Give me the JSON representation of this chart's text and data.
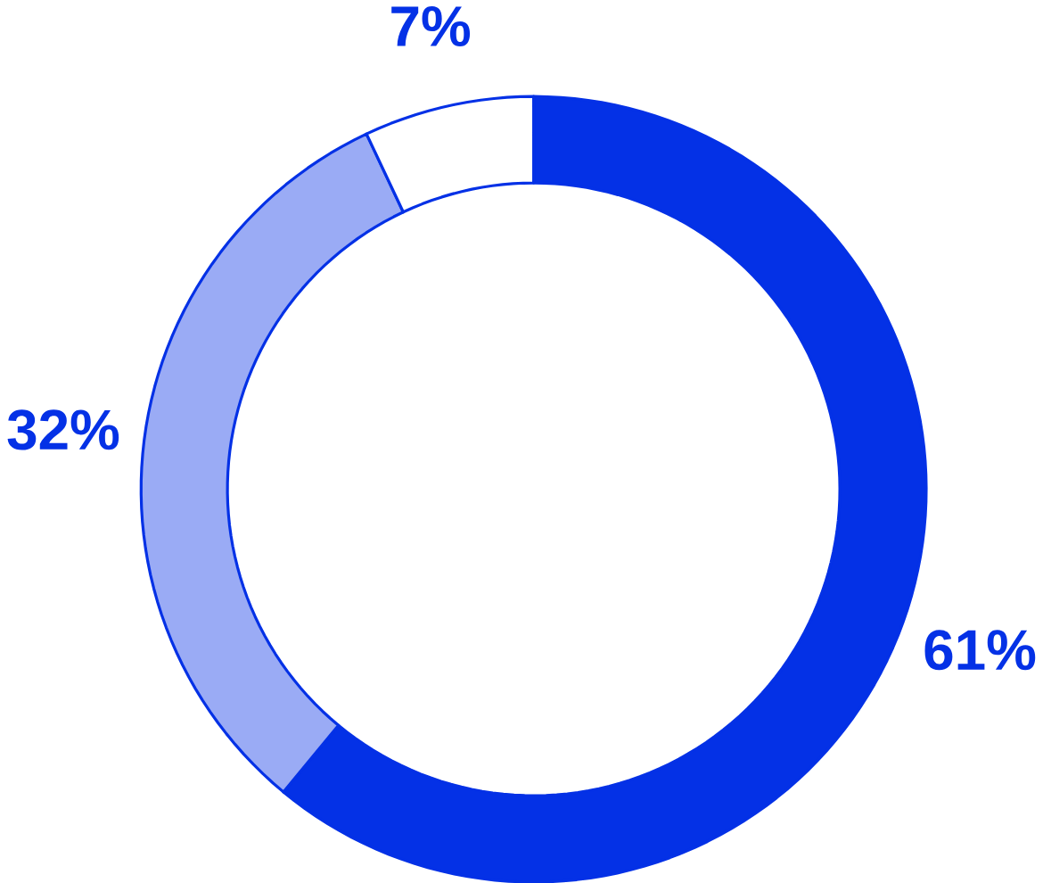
{
  "chart_data": {
    "type": "donut",
    "categories": [
      null,
      null,
      null
    ],
    "values": [
      61,
      32,
      7
    ],
    "colors": [
      "#0431e6",
      "#9aabf5",
      "#ffffff"
    ],
    "color": "#0431e6",
    "value_labels": [
      "61%",
      "32%",
      "7%"
    ]
  }
}
